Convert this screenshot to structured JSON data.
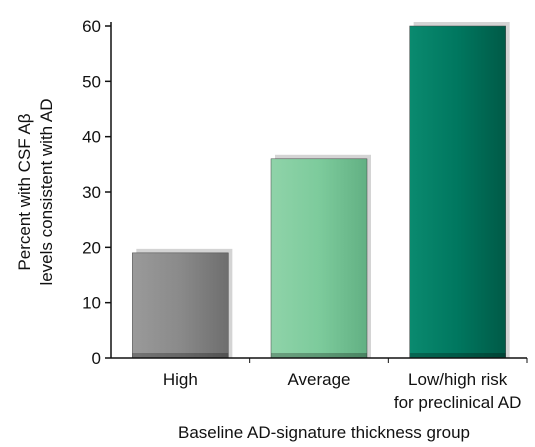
{
  "chart_data": {
    "type": "bar",
    "categories": [
      [
        "High"
      ],
      [
        "Average"
      ],
      [
        "Low/high risk",
        "for preclinical AD"
      ]
    ],
    "values": [
      19,
      36,
      60
    ],
    "colors": [
      "#8a8a8a",
      "#7dcb9c",
      "#00775f"
    ],
    "title": "",
    "xlabel": "Baseline AD-signature thickness group",
    "ylabel": [
      "Percent with CSF Aβ",
      "levels consistent with AD"
    ],
    "ylim": [
      0,
      60
    ],
    "yticks": [
      0,
      10,
      20,
      30,
      40,
      50,
      60
    ],
    "grid": false,
    "legend": "none"
  }
}
